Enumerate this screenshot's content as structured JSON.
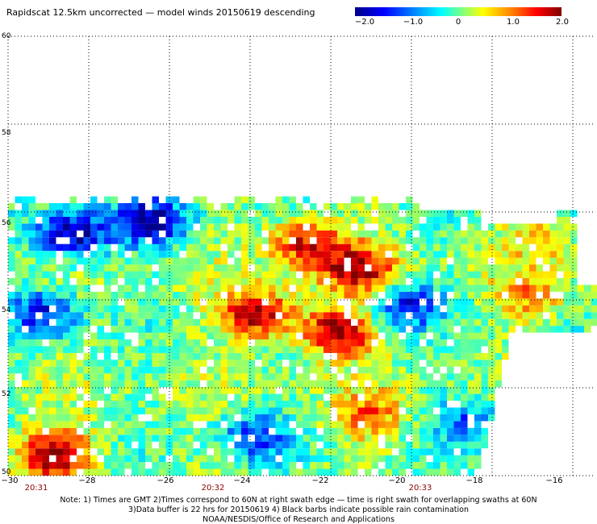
{
  "title": "Rapidscat 12.5km uncorrected — model winds 20150619 descending",
  "colorbar": {
    "labels": [
      "−2.0",
      "−1.0",
      "0",
      "1.0",
      "2.0"
    ],
    "colors": [
      "#00008b",
      "#0000ff",
      "#0080ff",
      "#00ffff",
      "#80ff80",
      "#ffff00",
      "#ff8000",
      "#ff0000",
      "#800000"
    ]
  },
  "axes": {
    "y_labels": [
      "60",
      "58",
      "56",
      "54",
      "52",
      "50"
    ],
    "x_labels": [
      "−30",
      "−28",
      "−26",
      "−24",
      "−22",
      "−20",
      "−18",
      "−16"
    ],
    "time_labels": [
      "20:31",
      "20:32",
      "20:33"
    ]
  },
  "notes": [
    "Note: 1) Times are GMT 2)Times correspond to 60N at right swath edge — time is right swath for overlapping swaths at 60N",
    "3)Data buffer is 22 hrs for 20150619 4) Black barbs indicate possible rain contamination",
    "NOAA/NESDIS/Office of Research and Applications"
  ],
  "map_data": {
    "lon_range": [
      -30,
      -15.5
    ],
    "lat_range": [
      50,
      60
    ],
    "hotspots": [
      {
        "lon": -23.9,
        "lat": 53.6,
        "value": 2.0
      },
      {
        "lon": -21.9,
        "lat": 53.2,
        "value": 2.0
      },
      {
        "lon": -21.4,
        "lat": 54.6,
        "value": 1.8
      },
      {
        "lon": -22.7,
        "lat": 55.2,
        "value": 1.6
      },
      {
        "lon": -29.0,
        "lat": 50.4,
        "value": 2.0
      },
      {
        "lon": -21.2,
        "lat": 51.3,
        "value": 1.0
      },
      {
        "lon": -17.2,
        "lat": 54.0,
        "value": 0.8
      },
      {
        "lon": -16.8,
        "lat": 55.3,
        "value": 0.6
      }
    ],
    "coldspots": [
      {
        "lon": -28.5,
        "lat": 55.4,
        "value": -2.0
      },
      {
        "lon": -26.5,
        "lat": 55.7,
        "value": -1.8
      },
      {
        "lon": -29.2,
        "lat": 53.6,
        "value": -1.5
      },
      {
        "lon": -20.3,
        "lat": 53.8,
        "value": -1.5
      },
      {
        "lon": -24.0,
        "lat": 50.8,
        "value": -1.2
      },
      {
        "lon": -18.6,
        "lat": 51.2,
        "value": -1.0
      }
    ]
  }
}
